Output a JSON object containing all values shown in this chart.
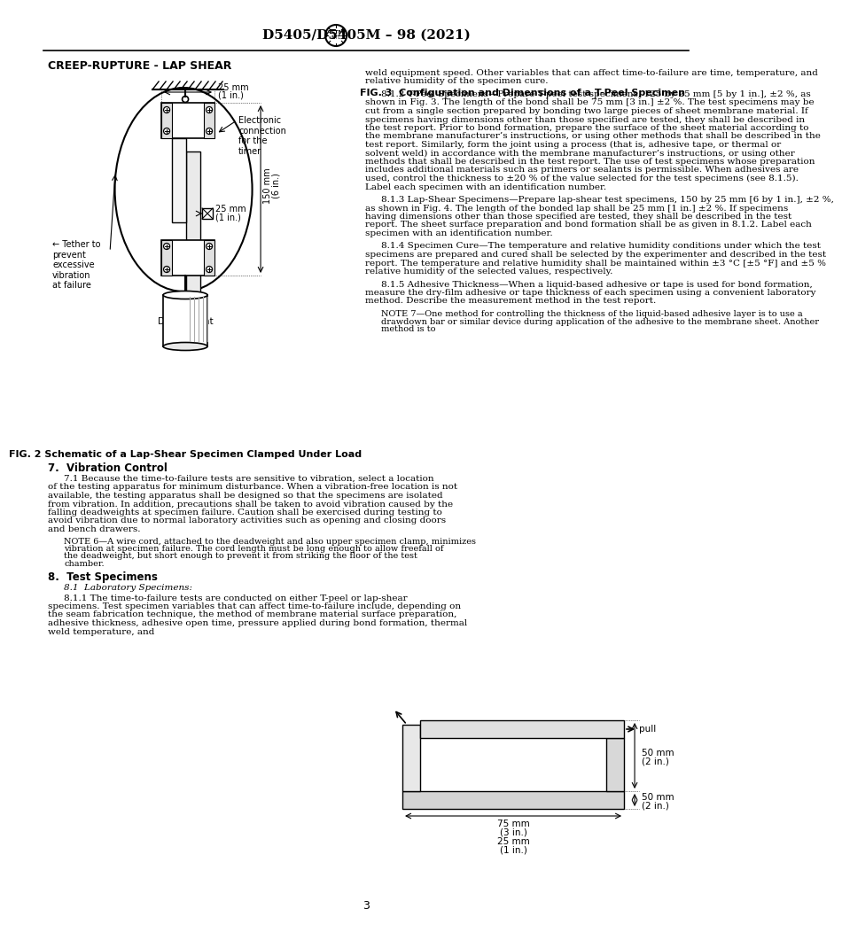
{
  "title_header": "D5405/D5405M – 98 (2021)",
  "left_col_header": "CREEP-RUPTURE - LAP SHEAR",
  "fig2_caption": "FIG. 2 Schematic of a Lap-Shear Specimen Clamped Under Load",
  "fig3_caption": "FIG. 3  Configuration and Dimensions of a T-Peel Specimen",
  "page_number": "3",
  "section7_header": "7.  Vibration Control",
  "section7_p1": "7.1 Because the time-to-failure tests are sensitive to vibration, select a location of the testing apparatus for minimum disturbance. When a vibration-free location is not available, the testing apparatus shall be designed so that the specimens are isolated from vibration. In addition, precautions shall be taken to avoid vibration caused by the falling deadweights at specimen failure. Caution shall be exercised during testing to avoid vibration due to normal laboratory activities such as opening and closing doors and bench drawers.",
  "note6_text": "NOTE 6—A wire cord, attached to the deadweight and also upper specimen clamp, minimizes vibration at specimen failure. The cord length must be long enough to allow freefall of the deadweight, but short enough to prevent it from striking the floor of the test chamber.",
  "section8_header": "8.  Test Specimens",
  "section81_header": "8.1  Laboratory Specimens:",
  "section811_text": "8.1.1 The time-to-failure tests are conducted on either T-peel or lap-shear specimens. Test specimen variables that can affect time-to-failure include, depending on the seam fabrication technique, the method of membrane material surface preparation, adhesive thickness, adhesive open time, pressure applied during bond formation, thermal weld temperature, and",
  "rc_continuation": "weld equipment speed. Other variables that can affect time-to-failure are time, temperature, and relative humidity of the specimen cure.",
  "section812_text": "8.1.2 T-Peel Specimens—Prepare T-peel test specimens, 125 by 25 mm [5 by 1 in.], ±2 %, as shown in Fig. 3. The length of the bond shall be 75 mm [3 in.] ±2 %. The test specimens may be cut from a single section prepared by bonding two large pieces of sheet membrane material. If specimens having dimensions other than those specified are tested, they shall be described in the test report. Prior to bond formation, prepare the surface of the sheet material according to the membrane manufacturer’s instructions, or using other methods that shall be described in the test report. Similarly, form the joint using a process (that is, adhesive tape, or thermal or solvent weld) in accordance with the membrane manufacturer’s instructions, or using other methods that shall be described in the test report. The use of test specimens whose preparation includes additional materials such as primers or sealants is permissible. When adhesives are used, control the thickness to ±20 % of the value selected for the test specimens (see 8.1.5). Label each specimen with an identification number.",
  "section813_text": "8.1.3 Lap-Shear Specimens—Prepare lap-shear test specimens, 150 by 25 mm [6 by 1 in.], ±2 %, as shown in Fig. 4. The length of the bonded lap shall be 25 mm [1 in.] ±2 %. If specimens having dimensions other than those specified are tested, they shall be described in the test report. The sheet surface preparation and bond formation shall be as given in 8.1.2. Label each specimen with an identification number.",
  "section814_text": "8.1.4 Specimen Cure—The temperature and relative humidity conditions under which the test specimens are prepared and cured shall be selected by the experimenter and described in the test report. The temperature and relative humidity shall be maintained within ±3 °C [±5 °F] and ±5 % relative humidity of the selected values, respectively.",
  "section815_text": "8.1.5 Adhesive Thickness—When a liquid-based adhesive or tape is used for bond formation, measure the dry-film adhesive or tape thickness of each specimen using a convenient laboratory method. Describe the measurement method in the test report.",
  "note7_text": "NOTE 7—One method for controlling the thickness of the liquid-based adhesive layer is to use a drawdown bar or similar device during application of the adhesive to the membrane sheet. Another method is to",
  "background_color": "#ffffff",
  "text_color": "#000000",
  "orange_color": "#C0392B"
}
